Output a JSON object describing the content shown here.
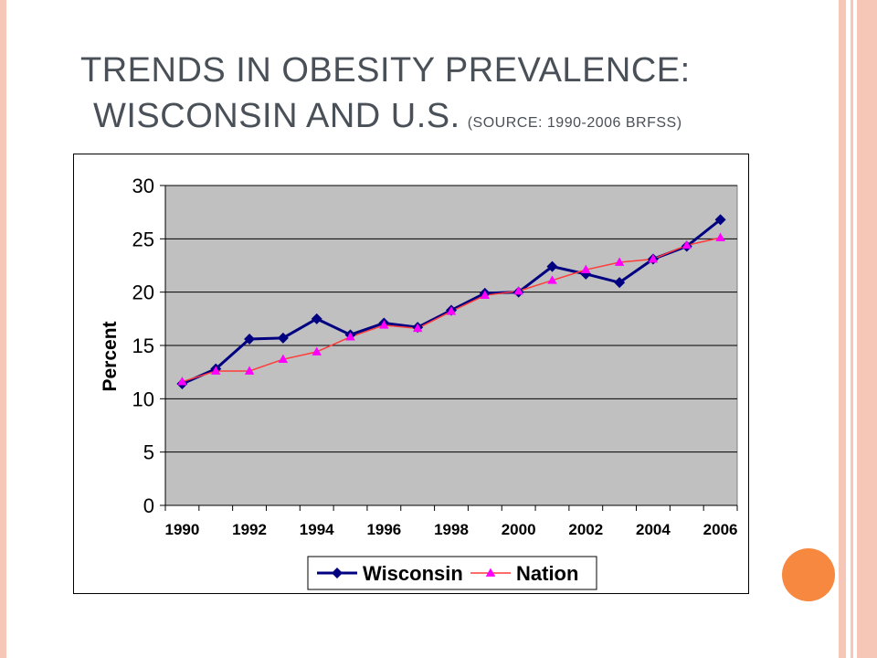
{
  "slide": {
    "title_line1": "TRENDS IN OBESITY PREVALENCE:",
    "title_line2": "WISCONSIN AND U.S.",
    "source": "(SOURCE: 1990-2006 BRFSS)"
  },
  "colors": {
    "border": "#f6c7b6",
    "accent_dot": "#f7883f",
    "plot_bg": "#c0c0c0",
    "wisconsin": "#000080",
    "nation_line": "#ff3b3b",
    "nation_marker": "#ff00ff"
  },
  "chart_data": {
    "type": "line",
    "title": "",
    "xlabel": "",
    "ylabel": "Percent",
    "ylim": [
      0,
      30
    ],
    "yticks": [
      0,
      5,
      10,
      15,
      20,
      25,
      30
    ],
    "xtick_labels": [
      "1990",
      "1992",
      "1994",
      "1996",
      "1998",
      "2000",
      "2002",
      "2004",
      "2006"
    ],
    "grid": true,
    "legend_position": "bottom",
    "x": [
      1990,
      1991,
      1992,
      1993,
      1994,
      1995,
      1996,
      1997,
      1998,
      1999,
      2000,
      2001,
      2002,
      2003,
      2004,
      2005,
      2006
    ],
    "series": [
      {
        "name": "Wisconsin",
        "marker": "diamond",
        "values": [
          11.4,
          12.8,
          15.6,
          15.7,
          17.5,
          16.0,
          17.1,
          16.7,
          18.3,
          19.9,
          20.0,
          22.4,
          21.7,
          20.9,
          23.1,
          24.3,
          26.8
        ]
      },
      {
        "name": "Nation",
        "marker": "triangle",
        "values": [
          11.6,
          12.6,
          12.6,
          13.7,
          14.4,
          15.8,
          16.9,
          16.6,
          18.2,
          19.7,
          20.1,
          21.1,
          22.1,
          22.8,
          23.1,
          24.4,
          25.1
        ]
      }
    ]
  }
}
